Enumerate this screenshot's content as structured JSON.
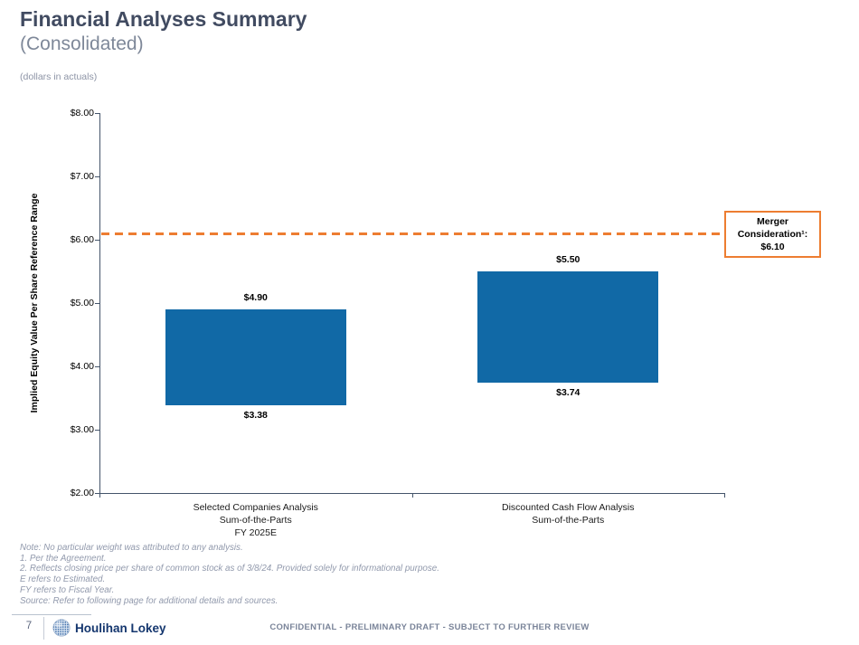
{
  "header": {
    "title": "Financial Analyses Summary",
    "subtitle": "(Consolidated)",
    "units_note": "(dollars in actuals)"
  },
  "chart_data": {
    "type": "bar",
    "variant": "floating-range-bars",
    "ylabel": "Implied Equity Value Per Share Reference Range",
    "ylim": [
      2.0,
      8.0
    ],
    "grid": false,
    "bar_color": "#1169A6",
    "axis_color": "#44546A",
    "yticks": [
      {
        "v": 2.0,
        "label": "$2.00"
      },
      {
        "v": 3.0,
        "label": "$3.00"
      },
      {
        "v": 4.0,
        "label": "$4.00"
      },
      {
        "v": 5.0,
        "label": "$5.00"
      },
      {
        "v": 6.0,
        "label": "$6.00"
      },
      {
        "v": 7.0,
        "label": "$7.00"
      },
      {
        "v": 8.0,
        "label": "$8.00"
      }
    ],
    "bars": [
      {
        "category_lines": [
          "Selected Companies Analysis",
          "Sum-of-the-Parts",
          "FY 2025E"
        ],
        "low": 3.38,
        "high": 4.9,
        "low_label": "$3.38",
        "high_label": "$4.90"
      },
      {
        "category_lines": [
          "Discounted Cash Flow Analysis",
          "Sum-of-the-Parts"
        ],
        "low": 3.74,
        "high": 5.5,
        "low_label": "$3.74",
        "high_label": "$5.50"
      }
    ],
    "reference_line": {
      "value": 6.1,
      "color": "#ED7D31",
      "style": "dashed",
      "label_lines": [
        "Merger",
        "Consideration¹:",
        "$6.10"
      ]
    }
  },
  "footnotes": [
    "Note: No particular weight was attributed to any analysis.",
    "1. Per the Agreement.",
    "2. Reflects closing price per share of common stock as of 3/8/24. Provided solely for informational purpose.",
    "E refers to Estimated.",
    "FY refers to Fiscal Year.",
    "Source: Refer to following page for additional details and sources."
  ],
  "footer": {
    "page_number": "7",
    "logo_icon": "globe-icon",
    "logo_text": "Houlihan Lokey",
    "confidential_text": "CONFIDENTIAL - PRELIMINARY DRAFT - SUBJECT TO FURTHER REVIEW"
  }
}
